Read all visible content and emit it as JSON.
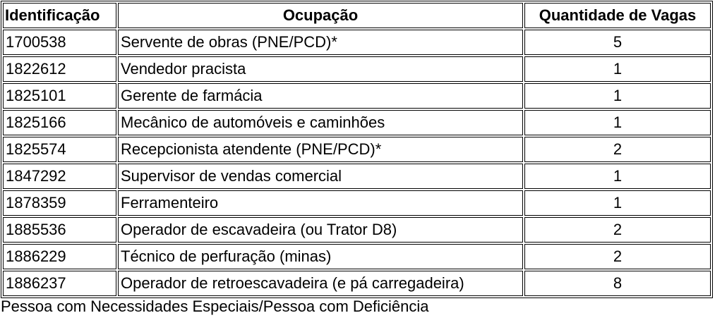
{
  "table": {
    "headers": [
      "Identificação",
      "Ocupação",
      "Quantidade de Vagas"
    ],
    "rows": [
      [
        "1700538",
        "Servente de obras (PNE/PCD)*",
        "5"
      ],
      [
        "1822612",
        "Vendedor pracista",
        "1"
      ],
      [
        "1825101",
        "Gerente de farmácia",
        "1"
      ],
      [
        "1825166",
        "Mecânico de automóveis e caminhões",
        "1"
      ],
      [
        "1825574",
        "Recepcionista atendente (PNE/PCD)*",
        "2"
      ],
      [
        "1847292",
        "Supervisor de vendas comercial",
        "1"
      ],
      [
        "1878359",
        "Ferramenteiro",
        "1"
      ],
      [
        "1885536",
        "Operador de escavadeira (ou Trator D8)",
        "2"
      ],
      [
        "1886229",
        "Técnico de perfuração (minas)",
        "2"
      ],
      [
        "1886237",
        "Operador de retroescavadeira (e pá carregadeira)",
        "8"
      ]
    ]
  },
  "footnote": "Pessoa com Necessidades Especiais/Pessoa com Deficiência"
}
